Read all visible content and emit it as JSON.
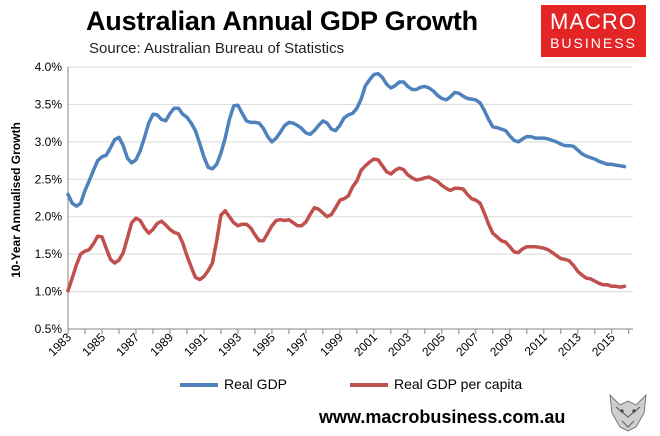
{
  "brand": {
    "logo_line1": "MACRO",
    "logo_line2": "BUSINESS",
    "footer_url": "www.macrobusiness.com.au"
  },
  "chart_data": {
    "type": "line",
    "title": "Australian Annual GDP Growth",
    "subtitle": "Source: Australian Bureau of Statistics",
    "ylabel": "10-Year Annualised Growth",
    "xlabel": "",
    "xlim": [
      1983,
      2016.25
    ],
    "ylim": [
      0.5,
      4.0
    ],
    "yticks": [
      "0.5%",
      "1.0%",
      "1.5%",
      "2.0%",
      "2.5%",
      "3.0%",
      "3.5%",
      "4.0%"
    ],
    "ytick_values": [
      0.5,
      1.0,
      1.5,
      2.0,
      2.5,
      3.0,
      3.5,
      4.0
    ],
    "xticks": [
      "1983",
      "1985",
      "1987",
      "1989",
      "1991",
      "1993",
      "1995",
      "1997",
      "1999",
      "2001",
      "2003",
      "2005",
      "2007",
      "2009",
      "2011",
      "2013",
      "2015"
    ],
    "xtick_values": [
      1983,
      1985,
      1987,
      1989,
      1991,
      1993,
      1995,
      1997,
      1999,
      2001,
      2003,
      2005,
      2007,
      2009,
      2011,
      2013,
      2015
    ],
    "grid": "horizontal",
    "legend_position": "bottom",
    "series": [
      {
        "name": "Real GDP",
        "color": "#4f81bd",
        "points": [
          [
            1983.0,
            2.3
          ],
          [
            1983.25,
            2.18
          ],
          [
            1983.5,
            2.14
          ],
          [
            1983.75,
            2.18
          ],
          [
            1984.0,
            2.35
          ],
          [
            1984.25,
            2.48
          ],
          [
            1984.5,
            2.62
          ],
          [
            1984.75,
            2.75
          ],
          [
            1985.0,
            2.8
          ],
          [
            1985.25,
            2.82
          ],
          [
            1985.5,
            2.92
          ],
          [
            1985.75,
            3.03
          ],
          [
            1986.0,
            3.06
          ],
          [
            1986.25,
            2.95
          ],
          [
            1986.5,
            2.78
          ],
          [
            1986.75,
            2.72
          ],
          [
            1987.0,
            2.76
          ],
          [
            1987.25,
            2.88
          ],
          [
            1987.5,
            3.06
          ],
          [
            1987.75,
            3.25
          ],
          [
            1988.0,
            3.37
          ],
          [
            1988.25,
            3.36
          ],
          [
            1988.5,
            3.3
          ],
          [
            1988.75,
            3.28
          ],
          [
            1989.0,
            3.38
          ],
          [
            1989.25,
            3.45
          ],
          [
            1989.5,
            3.45
          ],
          [
            1989.75,
            3.37
          ],
          [
            1990.0,
            3.33
          ],
          [
            1990.25,
            3.25
          ],
          [
            1990.5,
            3.15
          ],
          [
            1990.75,
            2.98
          ],
          [
            1991.0,
            2.8
          ],
          [
            1991.25,
            2.66
          ],
          [
            1991.5,
            2.64
          ],
          [
            1991.75,
            2.7
          ],
          [
            1992.0,
            2.85
          ],
          [
            1992.25,
            3.05
          ],
          [
            1992.5,
            3.3
          ],
          [
            1992.75,
            3.48
          ],
          [
            1993.0,
            3.49
          ],
          [
            1993.25,
            3.38
          ],
          [
            1993.5,
            3.28
          ],
          [
            1993.75,
            3.26
          ],
          [
            1994.0,
            3.26
          ],
          [
            1994.25,
            3.25
          ],
          [
            1994.5,
            3.18
          ],
          [
            1994.75,
            3.07
          ],
          [
            1995.0,
            3.0
          ],
          [
            1995.25,
            3.05
          ],
          [
            1995.5,
            3.13
          ],
          [
            1995.75,
            3.22
          ],
          [
            1996.0,
            3.26
          ],
          [
            1996.25,
            3.25
          ],
          [
            1996.5,
            3.22
          ],
          [
            1996.75,
            3.18
          ],
          [
            1997.0,
            3.12
          ],
          [
            1997.25,
            3.1
          ],
          [
            1997.5,
            3.15
          ],
          [
            1997.75,
            3.22
          ],
          [
            1998.0,
            3.28
          ],
          [
            1998.25,
            3.25
          ],
          [
            1998.5,
            3.17
          ],
          [
            1998.75,
            3.15
          ],
          [
            1999.0,
            3.22
          ],
          [
            1999.25,
            3.32
          ],
          [
            1999.5,
            3.36
          ],
          [
            1999.75,
            3.38
          ],
          [
            2000.0,
            3.45
          ],
          [
            2000.25,
            3.57
          ],
          [
            2000.5,
            3.75
          ],
          [
            2000.75,
            3.83
          ],
          [
            2001.0,
            3.9
          ],
          [
            2001.25,
            3.91
          ],
          [
            2001.5,
            3.86
          ],
          [
            2001.75,
            3.77
          ],
          [
            2002.0,
            3.72
          ],
          [
            2002.25,
            3.75
          ],
          [
            2002.5,
            3.8
          ],
          [
            2002.75,
            3.8
          ],
          [
            2003.0,
            3.74
          ],
          [
            2003.25,
            3.7
          ],
          [
            2003.5,
            3.7
          ],
          [
            2003.75,
            3.73
          ],
          [
            2004.0,
            3.74
          ],
          [
            2004.25,
            3.72
          ],
          [
            2004.5,
            3.68
          ],
          [
            2004.75,
            3.62
          ],
          [
            2005.0,
            3.58
          ],
          [
            2005.25,
            3.56
          ],
          [
            2005.5,
            3.6
          ],
          [
            2005.75,
            3.66
          ],
          [
            2006.0,
            3.65
          ],
          [
            2006.25,
            3.61
          ],
          [
            2006.5,
            3.58
          ],
          [
            2006.75,
            3.57
          ],
          [
            2007.0,
            3.56
          ],
          [
            2007.25,
            3.52
          ],
          [
            2007.5,
            3.42
          ],
          [
            2007.75,
            3.3
          ],
          [
            2008.0,
            3.2
          ],
          [
            2008.25,
            3.19
          ],
          [
            2008.5,
            3.17
          ],
          [
            2008.75,
            3.15
          ],
          [
            2009.0,
            3.08
          ],
          [
            2009.25,
            3.02
          ],
          [
            2009.5,
            3.0
          ],
          [
            2009.75,
            3.04
          ],
          [
            2010.0,
            3.07
          ],
          [
            2010.25,
            3.07
          ],
          [
            2010.5,
            3.05
          ],
          [
            2010.75,
            3.05
          ],
          [
            2011.0,
            3.05
          ],
          [
            2011.25,
            3.04
          ],
          [
            2011.5,
            3.02
          ],
          [
            2011.75,
            3.0
          ],
          [
            2012.0,
            2.97
          ],
          [
            2012.25,
            2.95
          ],
          [
            2012.5,
            2.95
          ],
          [
            2012.75,
            2.94
          ],
          [
            2013.0,
            2.89
          ],
          [
            2013.25,
            2.84
          ],
          [
            2013.5,
            2.81
          ],
          [
            2013.75,
            2.79
          ],
          [
            2014.0,
            2.77
          ],
          [
            2014.25,
            2.74
          ],
          [
            2014.5,
            2.72
          ],
          [
            2014.75,
            2.7
          ],
          [
            2015.0,
            2.7
          ],
          [
            2015.25,
            2.69
          ],
          [
            2015.5,
            2.68
          ],
          [
            2015.75,
            2.67
          ]
        ]
      },
      {
        "name": "Real GDP per capita",
        "color": "#c0504d",
        "points": [
          [
            1983.0,
            1.01
          ],
          [
            1983.25,
            1.18
          ],
          [
            1983.5,
            1.36
          ],
          [
            1983.75,
            1.5
          ],
          [
            1984.0,
            1.54
          ],
          [
            1984.25,
            1.56
          ],
          [
            1984.5,
            1.64
          ],
          [
            1984.75,
            1.74
          ],
          [
            1985.0,
            1.73
          ],
          [
            1985.25,
            1.58
          ],
          [
            1985.5,
            1.43
          ],
          [
            1985.75,
            1.38
          ],
          [
            1986.0,
            1.42
          ],
          [
            1986.25,
            1.52
          ],
          [
            1986.5,
            1.72
          ],
          [
            1986.75,
            1.92
          ],
          [
            1987.0,
            1.98
          ],
          [
            1987.25,
            1.95
          ],
          [
            1987.5,
            1.85
          ],
          [
            1987.75,
            1.78
          ],
          [
            1988.0,
            1.83
          ],
          [
            1988.25,
            1.91
          ],
          [
            1988.5,
            1.94
          ],
          [
            1988.75,
            1.89
          ],
          [
            1989.0,
            1.83
          ],
          [
            1989.25,
            1.79
          ],
          [
            1989.5,
            1.77
          ],
          [
            1989.75,
            1.65
          ],
          [
            1990.0,
            1.48
          ],
          [
            1990.25,
            1.33
          ],
          [
            1990.5,
            1.19
          ],
          [
            1990.75,
            1.16
          ],
          [
            1991.0,
            1.2
          ],
          [
            1991.25,
            1.28
          ],
          [
            1991.5,
            1.38
          ],
          [
            1991.75,
            1.68
          ],
          [
            1992.0,
            2.02
          ],
          [
            1992.25,
            2.08
          ],
          [
            1992.5,
            2.0
          ],
          [
            1992.75,
            1.92
          ],
          [
            1993.0,
            1.88
          ],
          [
            1993.25,
            1.9
          ],
          [
            1993.5,
            1.9
          ],
          [
            1993.75,
            1.85
          ],
          [
            1994.0,
            1.76
          ],
          [
            1994.25,
            1.68
          ],
          [
            1994.5,
            1.68
          ],
          [
            1994.75,
            1.78
          ],
          [
            1995.0,
            1.88
          ],
          [
            1995.25,
            1.95
          ],
          [
            1995.5,
            1.96
          ],
          [
            1995.75,
            1.95
          ],
          [
            1996.0,
            1.96
          ],
          [
            1996.25,
            1.92
          ],
          [
            1996.5,
            1.88
          ],
          [
            1996.75,
            1.88
          ],
          [
            1997.0,
            1.93
          ],
          [
            1997.25,
            2.03
          ],
          [
            1997.5,
            2.12
          ],
          [
            1997.75,
            2.1
          ],
          [
            1998.0,
            2.05
          ],
          [
            1998.25,
            2.0
          ],
          [
            1998.5,
            2.03
          ],
          [
            1998.75,
            2.12
          ],
          [
            1999.0,
            2.22
          ],
          [
            1999.25,
            2.24
          ],
          [
            1999.5,
            2.28
          ],
          [
            1999.75,
            2.4
          ],
          [
            2000.0,
            2.48
          ],
          [
            2000.25,
            2.62
          ],
          [
            2000.5,
            2.68
          ],
          [
            2000.75,
            2.73
          ],
          [
            2001.0,
            2.77
          ],
          [
            2001.25,
            2.76
          ],
          [
            2001.5,
            2.68
          ],
          [
            2001.75,
            2.6
          ],
          [
            2002.0,
            2.57
          ],
          [
            2002.25,
            2.62
          ],
          [
            2002.5,
            2.65
          ],
          [
            2002.75,
            2.63
          ],
          [
            2003.0,
            2.56
          ],
          [
            2003.25,
            2.52
          ],
          [
            2003.5,
            2.49
          ],
          [
            2003.75,
            2.5
          ],
          [
            2004.0,
            2.52
          ],
          [
            2004.25,
            2.53
          ],
          [
            2004.5,
            2.5
          ],
          [
            2004.75,
            2.47
          ],
          [
            2005.0,
            2.42
          ],
          [
            2005.25,
            2.38
          ],
          [
            2005.5,
            2.35
          ],
          [
            2005.75,
            2.38
          ],
          [
            2006.0,
            2.38
          ],
          [
            2006.25,
            2.37
          ],
          [
            2006.5,
            2.3
          ],
          [
            2006.75,
            2.24
          ],
          [
            2007.0,
            2.22
          ],
          [
            2007.25,
            2.18
          ],
          [
            2007.5,
            2.05
          ],
          [
            2007.75,
            1.9
          ],
          [
            2008.0,
            1.78
          ],
          [
            2008.25,
            1.73
          ],
          [
            2008.5,
            1.68
          ],
          [
            2008.75,
            1.66
          ],
          [
            2009.0,
            1.6
          ],
          [
            2009.25,
            1.53
          ],
          [
            2009.5,
            1.52
          ],
          [
            2009.75,
            1.57
          ],
          [
            2010.0,
            1.6
          ],
          [
            2010.25,
            1.6
          ],
          [
            2010.5,
            1.6
          ],
          [
            2010.75,
            1.59
          ],
          [
            2011.0,
            1.58
          ],
          [
            2011.25,
            1.56
          ],
          [
            2011.5,
            1.52
          ],
          [
            2011.75,
            1.48
          ],
          [
            2012.0,
            1.44
          ],
          [
            2012.25,
            1.43
          ],
          [
            2012.5,
            1.41
          ],
          [
            2012.75,
            1.35
          ],
          [
            2013.0,
            1.27
          ],
          [
            2013.25,
            1.22
          ],
          [
            2013.5,
            1.18
          ],
          [
            2013.75,
            1.17
          ],
          [
            2014.0,
            1.14
          ],
          [
            2014.25,
            1.11
          ],
          [
            2014.5,
            1.09
          ],
          [
            2014.75,
            1.09
          ],
          [
            2015.0,
            1.07
          ],
          [
            2015.25,
            1.07
          ],
          [
            2015.5,
            1.06
          ],
          [
            2015.75,
            1.07
          ]
        ]
      }
    ]
  }
}
